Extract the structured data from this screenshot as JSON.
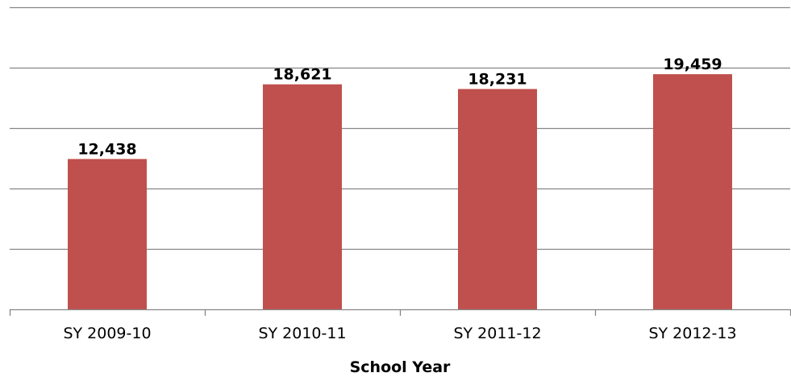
{
  "chart_data": {
    "type": "bar",
    "title": "",
    "xlabel": "School Year",
    "ylabel": "",
    "categories": [
      "SY 2009-10",
      "SY 2010-11",
      "SY 2011-12",
      "SY 2012-13"
    ],
    "values": [
      12438,
      18621,
      18231,
      19459
    ],
    "data_labels": [
      "12,438",
      "18,621",
      "18,231",
      "19,459"
    ],
    "ylim": [
      0,
      25000
    ],
    "ytick_step": 5000,
    "grid": true,
    "legend": "none",
    "bar_color": "#C0504D",
    "gridline_color": "#868686"
  }
}
